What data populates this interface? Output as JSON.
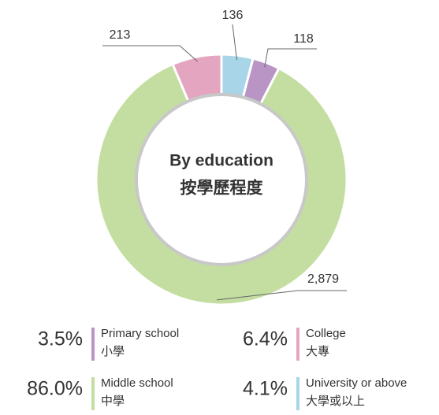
{
  "chart_data": {
    "type": "donut",
    "center_title": "By education",
    "center_subtitle": "按學歷程度",
    "categories": [
      "Primary school",
      "Middle school",
      "College",
      "University or above"
    ],
    "categories_zh": [
      "小學",
      "中學",
      "大專",
      "大學或以上"
    ],
    "values": [
      118,
      2879,
      213,
      136
    ],
    "value_labels": [
      "118",
      "2,879",
      "213",
      "136"
    ],
    "colors": [
      "#b995c6",
      "#c3dea0",
      "#e4a5c0",
      "#a8d5e8"
    ],
    "percentages": [
      3.5,
      86.0,
      6.4,
      4.1
    ],
    "percentage_labels": [
      "3.5%",
      "86.0%",
      "6.4%",
      "4.1%"
    ]
  }
}
